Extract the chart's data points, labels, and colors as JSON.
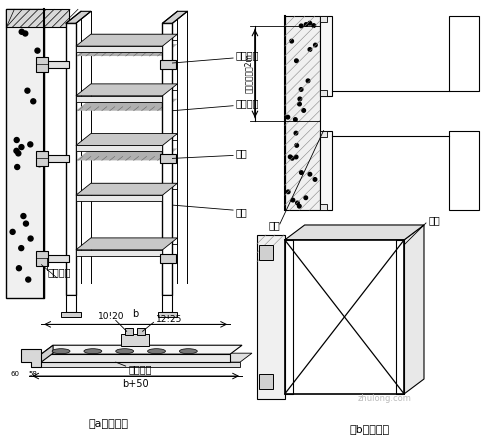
{
  "bg_color": "#ffffff",
  "fig_width": 4.93,
  "fig_height": 4.44,
  "dpi": 100,
  "labels": {
    "gudingya": "固定压板",
    "lianjie": "连接螺栓",
    "qiaojia": "桥架",
    "tuobi": "托臁",
    "pengzhang": "膏胀螺栓",
    "size1": "10!20",
    "size2": "12!25",
    "b_label": "b",
    "b50_label": "b+50",
    "biangangtuobi": "扁锆托臁",
    "caption_a": "（a）方式一",
    "caption_b": "（b）方式二",
    "cugou1": "槽锆",
    "cugou2": "槽锆",
    "jiangewen": "固定间距小于2m"
  }
}
